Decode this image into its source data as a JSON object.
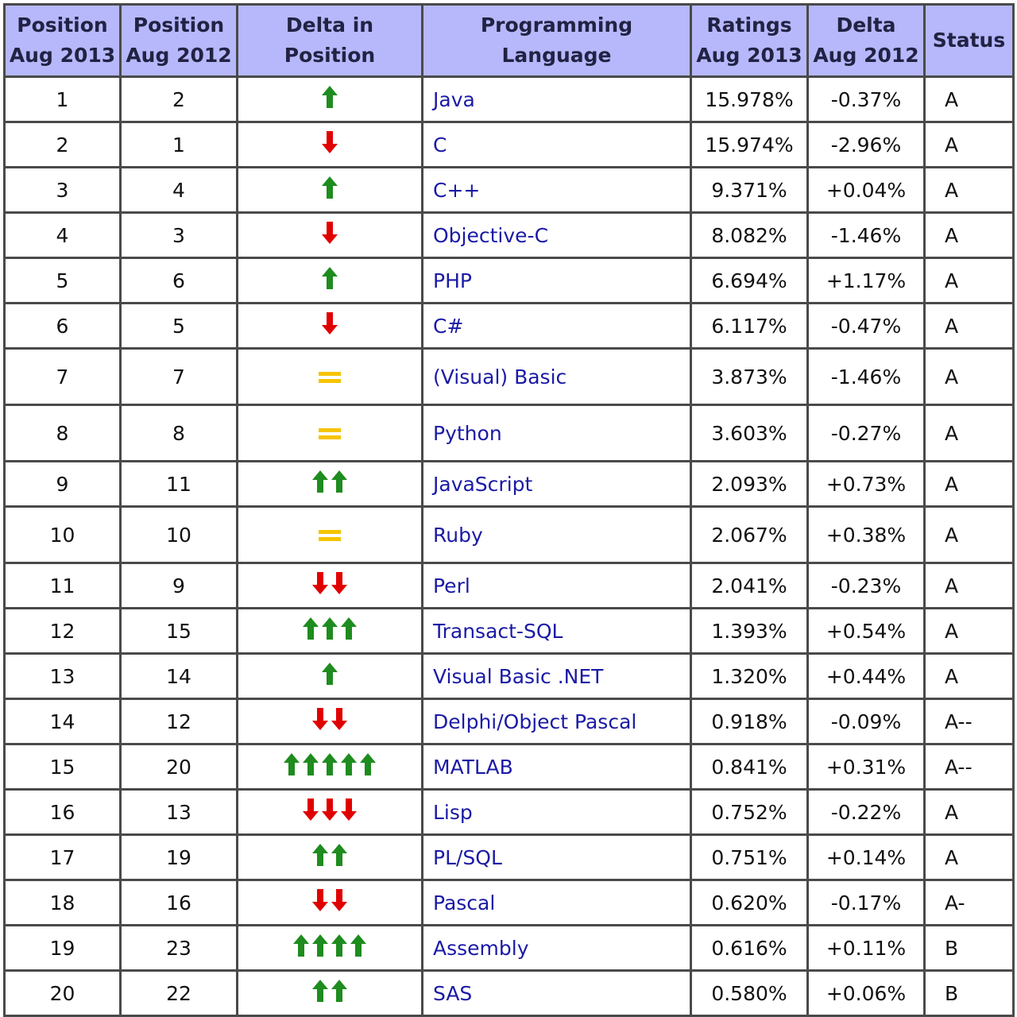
{
  "chart_data": {
    "type": "table",
    "columns": [
      "Position Aug 2013",
      "Position Aug 2012",
      "Delta in Position",
      "Programming Language",
      "Ratings Aug 2013",
      "Delta Aug 2012",
      "Status"
    ],
    "header_lines": [
      [
        "Position",
        "Aug 2013"
      ],
      [
        "Position",
        "Aug 2012"
      ],
      [
        "Delta in Position"
      ],
      [
        "Programming Language"
      ],
      [
        "Ratings",
        "Aug 2013"
      ],
      [
        "Delta",
        "Aug 2012"
      ],
      [
        "Status"
      ]
    ],
    "rows": [
      {
        "pos2013": "1",
        "pos2012": "2",
        "language": "Java",
        "rating": "15.978%",
        "delta": "-0.37%",
        "status": "A"
      },
      {
        "pos2013": "2",
        "pos2012": "1",
        "language": "C",
        "rating": "15.974%",
        "delta": "-2.96%",
        "status": "A"
      },
      {
        "pos2013": "3",
        "pos2012": "4",
        "language": "C++",
        "rating": "9.371%",
        "delta": "+0.04%",
        "status": "A"
      },
      {
        "pos2013": "4",
        "pos2012": "3",
        "language": "Objective-C",
        "rating": "8.082%",
        "delta": "-1.46%",
        "status": "A"
      },
      {
        "pos2013": "5",
        "pos2012": "6",
        "language": "PHP",
        "rating": "6.694%",
        "delta": "+1.17%",
        "status": "A"
      },
      {
        "pos2013": "6",
        "pos2012": "5",
        "language": "C#",
        "rating": "6.117%",
        "delta": "-0.47%",
        "status": "A"
      },
      {
        "pos2013": "7",
        "pos2012": "7",
        "language": "(Visual) Basic",
        "rating": "3.873%",
        "delta": "-1.46%",
        "status": "A"
      },
      {
        "pos2013": "8",
        "pos2012": "8",
        "language": "Python",
        "rating": "3.603%",
        "delta": "-0.27%",
        "status": "A"
      },
      {
        "pos2013": "9",
        "pos2012": "11",
        "language": "JavaScript",
        "rating": "2.093%",
        "delta": "+0.73%",
        "status": "A"
      },
      {
        "pos2013": "10",
        "pos2012": "10",
        "language": "Ruby",
        "rating": "2.067%",
        "delta": "+0.38%",
        "status": "A"
      },
      {
        "pos2013": "11",
        "pos2012": "9",
        "language": "Perl",
        "rating": "2.041%",
        "delta": "-0.23%",
        "status": "A"
      },
      {
        "pos2013": "12",
        "pos2012": "15",
        "language": "Transact-SQL",
        "rating": "1.393%",
        "delta": "+0.54%",
        "status": "A"
      },
      {
        "pos2013": "13",
        "pos2012": "14",
        "language": "Visual Basic .NET",
        "rating": "1.320%",
        "delta": "+0.44%",
        "status": "A"
      },
      {
        "pos2013": "14",
        "pos2012": "12",
        "language": "Delphi/Object Pascal",
        "rating": "0.918%",
        "delta": "-0.09%",
        "status": "A--"
      },
      {
        "pos2013": "15",
        "pos2012": "20",
        "language": "MATLAB",
        "rating": "0.841%",
        "delta": "+0.31%",
        "status": "A--"
      },
      {
        "pos2013": "16",
        "pos2012": "13",
        "language": "Lisp",
        "rating": "0.752%",
        "delta": "-0.22%",
        "status": "A"
      },
      {
        "pos2013": "17",
        "pos2012": "19",
        "language": "PL/SQL",
        "rating": "0.751%",
        "delta": "+0.14%",
        "status": "A"
      },
      {
        "pos2013": "18",
        "pos2012": "16",
        "language": "Pascal",
        "rating": "0.620%",
        "delta": "-0.17%",
        "status": "A-"
      },
      {
        "pos2013": "19",
        "pos2012": "23",
        "language": "Assembly",
        "rating": "0.616%",
        "delta": "+0.11%",
        "status": "B"
      },
      {
        "pos2013": "20",
        "pos2012": "22",
        "language": "SAS",
        "rating": "0.580%",
        "delta": "+0.06%",
        "status": "B"
      }
    ],
    "delta_icons": {
      "up_color": "#1e8c1e",
      "down_color": "#e00000",
      "equal_color": "#f6c400"
    }
  }
}
